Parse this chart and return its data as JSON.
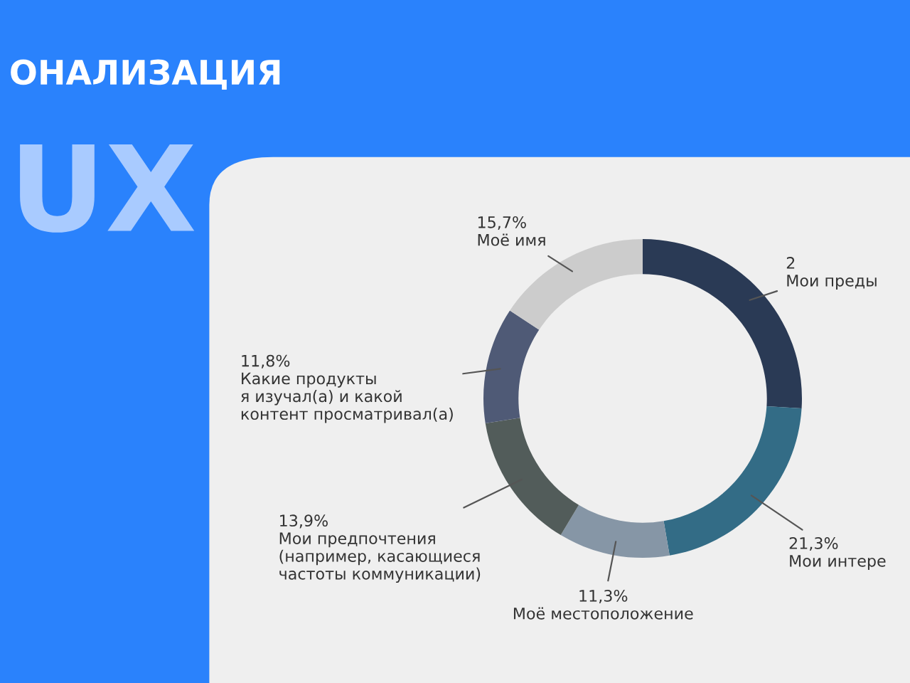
{
  "chart_data": {
    "type": "donut",
    "title": "ОНАЛИЗАЦИЯ",
    "annotations": [
      "UX"
    ],
    "categories": [
      "2\nМои преды",
      "Мои интере",
      "Моё местоположение",
      "Мои предпочтения\n(например, касающиеся\nчастоты коммуникации)",
      "Какие продукты\nя изучал(а) и какой\nконтент просматривал(а)",
      "Моё имя"
    ],
    "values": [
      26.0,
      21.3,
      11.3,
      13.9,
      11.8,
      15.7
    ],
    "value_labels": [
      null,
      "21,3%",
      "11,3%",
      "13,9%",
      "11,8%",
      "15,7%"
    ],
    "colors": [
      "#2a3a55",
      "#336c86",
      "#8696a6",
      "#525c5a",
      "#4f5a76",
      "#cccccc"
    ],
    "legend": false
  }
}
